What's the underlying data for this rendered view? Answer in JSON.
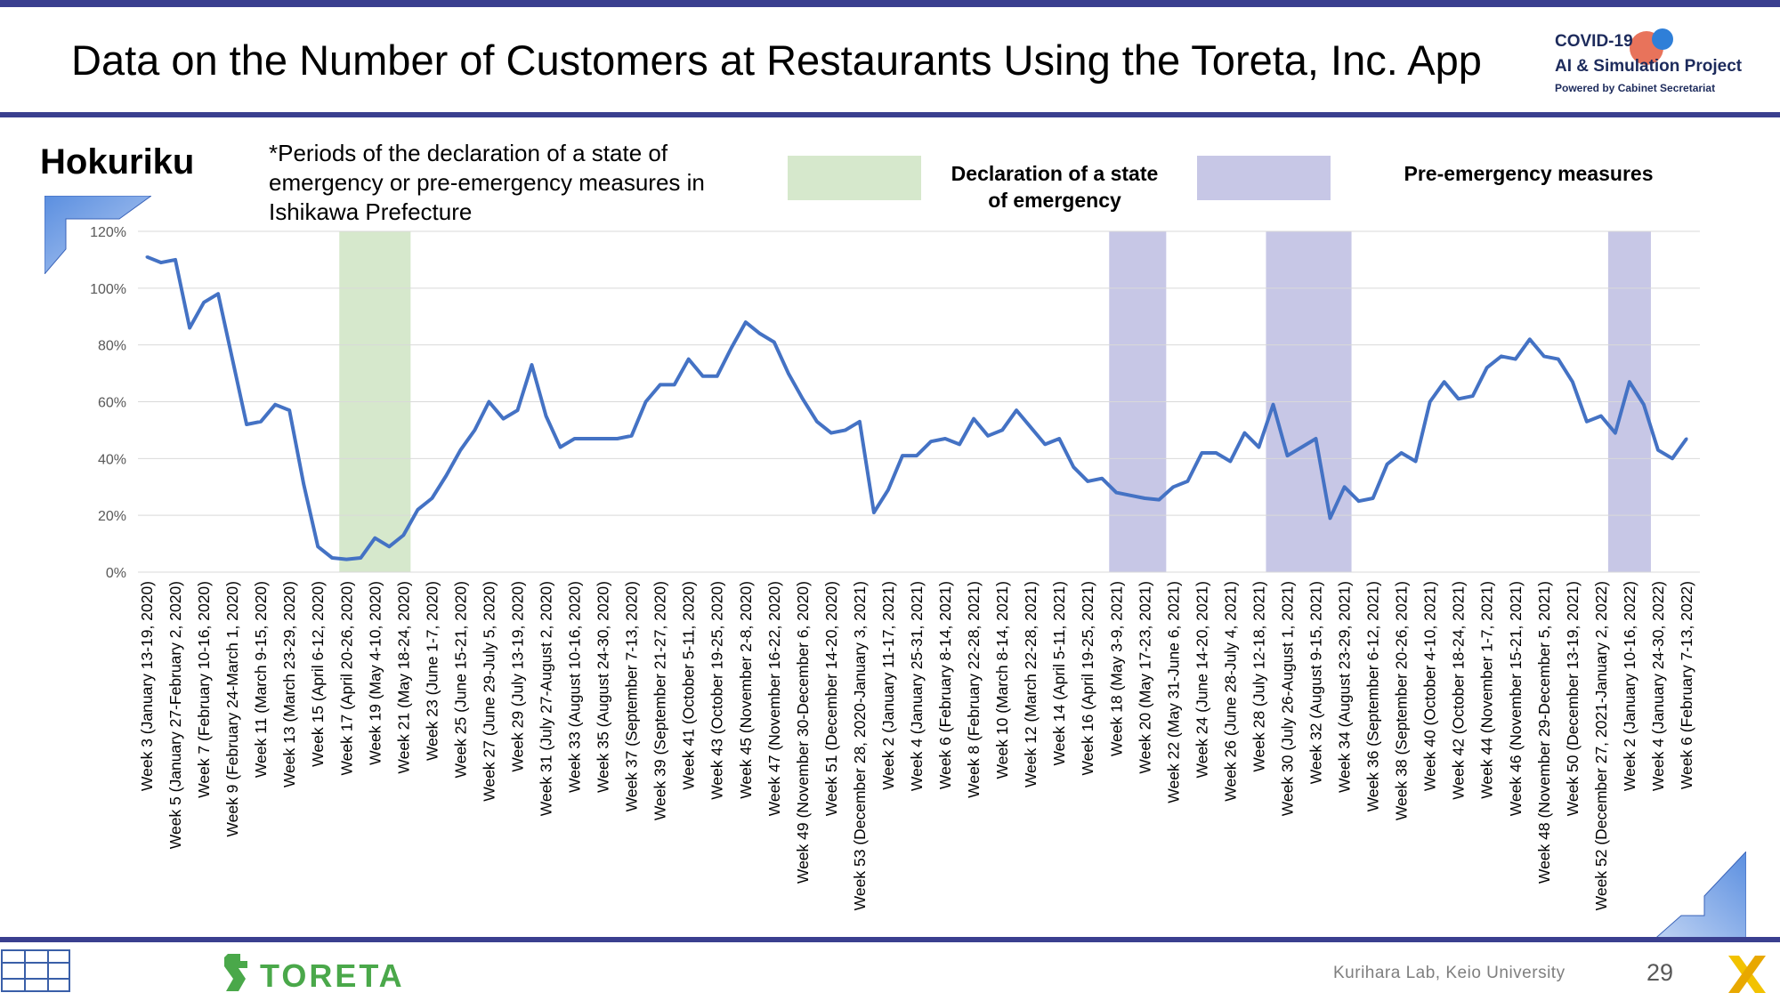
{
  "header": {
    "title": "Data on the Number of Customers at Restaurants Using the Toreta, Inc. App",
    "logo_line1": "COVID-19",
    "logo_line2": "AI & Simulation Project",
    "logo_line3": "Powered by Cabinet Secretariat"
  },
  "region": "Hokuriku",
  "note": "*Periods of the declaration of a state of emergency or pre-emergency measures in Ishikawa Prefecture",
  "legend": {
    "emergency_line1": "Declaration of a state",
    "emergency_line2": "of emergency",
    "emergency_color": "#d6e8cc",
    "preemergency": "Pre-emergency measures",
    "preemergency_color": "#c7c7e6"
  },
  "footer": {
    "credit": "Kurihara Lab, Keio University",
    "page": "29",
    "brand": "TORETA"
  },
  "chart_data": {
    "type": "line",
    "ylim": [
      0,
      120
    ],
    "yticks": [
      "0%",
      "20%",
      "40%",
      "60%",
      "80%",
      "100%",
      "120%"
    ],
    "ytick_values": [
      0,
      20,
      40,
      60,
      80,
      100,
      120
    ],
    "line_color": "#4472c4",
    "grid": true,
    "x_labels": [
      "Week 3 (January 13-19, 2020)",
      "Week 5 (January 27-February 2, 2020)",
      "Week 7 (February 10-16, 2020)",
      "Week 9 (February 24-March 1, 2020)",
      "Week 11 (March 9-15, 2020)",
      "Week 13 (March 23-29, 2020)",
      "Week 15 (April 6-12, 2020)",
      "Week 17 (April 20-26, 2020)",
      "Week 19 (May 4-10, 2020)",
      "Week 21 (May 18-24, 2020)",
      "Week 23 (June 1-7, 2020)",
      "Week 25 (June 15-21, 2020)",
      "Week 27 (June 29-July 5, 2020)",
      "Week 29 (July 13-19, 2020)",
      "Week 31 (July 27-August 2, 2020)",
      "Week 33 (August 10-16, 2020)",
      "Week 35 (August 24-30, 2020)",
      "Week 37 (September 7-13, 2020)",
      "Week 39 (September 21-27, 2020)",
      "Week 41 (October 5-11, 2020)",
      "Week 43 (October 19-25, 2020)",
      "Week 45 (November 2-8, 2020)",
      "Week 47 (November 16-22, 2020)",
      "Week 49 (November 30-December 6, 2020)",
      "Week 51 (December 14-20, 2020)",
      "Week 53 (December 28, 2020-January 3, 2021)",
      "Week 2 (January 11-17, 2021)",
      "Week 4 (January 25-31, 2021)",
      "Week 6 (February 8-14, 2021)",
      "Week 8 (February 22-28, 2021)",
      "Week 10 (March 8-14, 2021)",
      "Week 12 (March 22-28, 2021)",
      "Week 14 (April 5-11, 2021)",
      "Week 16 (April 19-25, 2021)",
      "Week 18 (May 3-9, 2021)",
      "Week 20 (May 17-23, 2021)",
      "Week 22 (May 31-June 6, 2021)",
      "Week 24 (June 14-20, 2021)",
      "Week 26 (June 28-July 4, 2021)",
      "Week 28 (July 12-18, 2021)",
      "Week 30 (July 26-August 1, 2021)",
      "Week 32 (August 9-15, 2021)",
      "Week 34 (August 23-29, 2021)",
      "Week 36 (September 6-12, 2021)",
      "Week 38 (September 20-26, 2021)",
      "Week 40 (October 4-10, 2021)",
      "Week 42 (October 18-24, 2021)",
      "Week 44 (November 1-7, 2021)",
      "Week 46 (November 15-21, 2021)",
      "Week 48 (November 29-December 5, 2021)",
      "Week 50 (December 13-19, 2021)",
      "Week 52 (December 27, 2021-January 2, 2022)",
      "Week 2 (January 10-16, 2022)",
      "Week 4 (January 24-30, 2022)",
      "Week 6 (February 7-13, 2022)"
    ],
    "values": [
      111,
      109,
      110,
      86,
      95,
      98,
      75,
      52,
      53,
      59,
      57,
      31,
      9,
      5,
      4.5,
      5,
      12,
      9,
      13,
      22,
      26,
      34,
      43,
      50,
      60,
      54,
      57,
      73,
      55,
      44,
      47,
      47,
      47,
      47,
      48,
      60,
      66,
      66,
      75,
      69,
      69,
      79,
      88,
      84,
      81,
      70,
      61,
      53,
      49,
      50,
      53,
      21,
      29,
      41,
      41,
      46,
      47,
      45,
      54,
      48,
      50,
      57,
      51,
      45,
      47,
      37,
      32,
      33,
      28,
      27,
      26,
      25.5,
      30,
      32,
      42,
      42,
      39,
      49,
      44,
      59,
      41,
      44,
      47,
      19,
      30,
      25,
      26,
      38,
      42,
      39,
      60,
      67,
      61,
      62,
      72,
      76,
      75,
      82,
      76,
      75,
      67,
      53,
      55,
      49,
      67,
      59,
      43,
      40,
      47
    ],
    "emergency_periods": [
      [
        14,
        18
      ]
    ],
    "preemergency_periods": [
      [
        68,
        71
      ],
      [
        79,
        84
      ],
      [
        103,
        105
      ]
    ]
  }
}
